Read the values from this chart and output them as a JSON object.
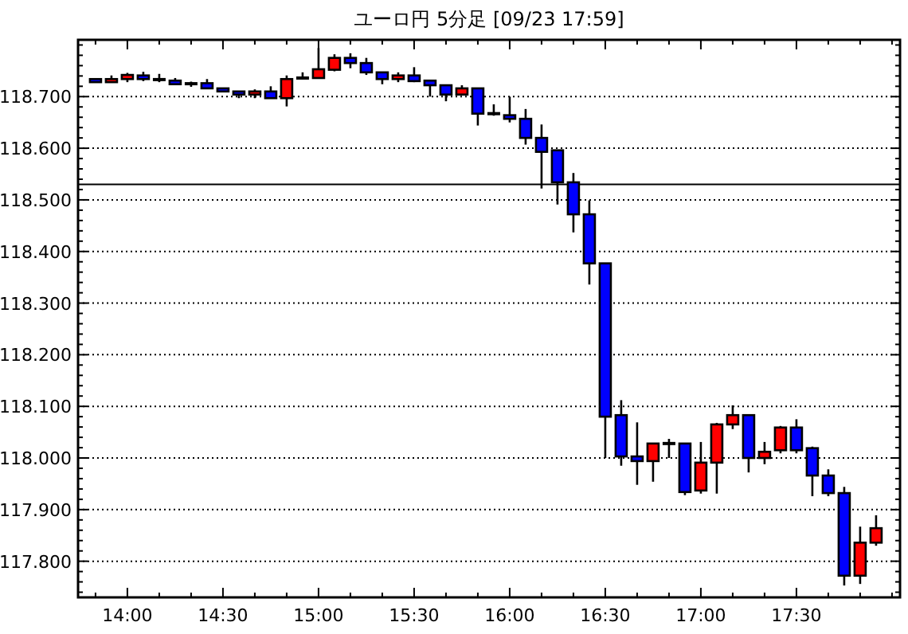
{
  "chart_data": {
    "type": "candlestick",
    "title": "ユーロ円 5分足 [09/23 17:59]",
    "x": [
      13.8333,
      13.9167,
      14.0,
      14.0833,
      14.1667,
      14.25,
      14.3333,
      14.4167,
      14.5,
      14.5833,
      14.6667,
      14.75,
      14.8333,
      14.9167,
      15.0,
      15.0833,
      15.1667,
      15.25,
      15.3333,
      15.4167,
      15.5,
      15.5833,
      15.6667,
      15.75,
      15.8333,
      15.9167,
      16.0,
      16.0833,
      16.1667,
      16.25,
      16.3333,
      16.4167,
      16.5,
      16.5833,
      16.6667,
      16.75,
      16.8333,
      16.9167,
      17.0,
      17.0833,
      17.1667,
      17.25,
      17.3333,
      17.4167,
      17.5,
      17.5833,
      17.6667,
      17.75,
      17.8333,
      17.9167
    ],
    "ohlc": [
      [
        118.734,
        118.735,
        118.728,
        118.728
      ],
      [
        118.728,
        118.741,
        118.728,
        118.734
      ],
      [
        118.734,
        118.746,
        118.728,
        118.742
      ],
      [
        118.741,
        118.748,
        118.73,
        118.734
      ],
      [
        118.733,
        118.744,
        118.728,
        118.733
      ],
      [
        118.731,
        118.736,
        118.724,
        118.724
      ],
      [
        118.725,
        118.729,
        118.719,
        118.725
      ],
      [
        118.726,
        118.734,
        118.716,
        118.716
      ],
      [
        118.716,
        118.717,
        118.709,
        118.71
      ],
      [
        118.71,
        118.711,
        118.697,
        118.704
      ],
      [
        118.704,
        118.714,
        118.697,
        118.71
      ],
      [
        118.71,
        118.72,
        118.697,
        118.697
      ],
      [
        118.697,
        118.741,
        118.681,
        118.734
      ],
      [
        118.736,
        118.747,
        118.734,
        118.736
      ],
      [
        118.736,
        118.794,
        118.736,
        118.753
      ],
      [
        118.752,
        118.782,
        118.749,
        118.775
      ],
      [
        118.775,
        118.784,
        118.755,
        118.765
      ],
      [
        118.765,
        118.775,
        118.742,
        118.747
      ],
      [
        118.747,
        118.748,
        118.724,
        118.734
      ],
      [
        118.734,
        118.747,
        118.728,
        118.741
      ],
      [
        118.741,
        118.757,
        118.728,
        118.73
      ],
      [
        118.731,
        118.732,
        118.7,
        118.722
      ],
      [
        118.722,
        118.723,
        118.691,
        118.704
      ],
      [
        118.704,
        118.722,
        118.704,
        118.716
      ],
      [
        118.716,
        118.717,
        118.644,
        118.667
      ],
      [
        118.667,
        118.685,
        118.663,
        118.667
      ],
      [
        118.664,
        118.7,
        118.65,
        118.657
      ],
      [
        118.657,
        118.676,
        118.607,
        118.62
      ],
      [
        118.62,
        118.646,
        118.522,
        118.593
      ],
      [
        118.596,
        118.597,
        118.491,
        118.534
      ],
      [
        118.534,
        118.552,
        118.437,
        118.472
      ],
      [
        118.472,
        118.499,
        118.336,
        118.377
      ],
      [
        118.377,
        118.377,
        118.0,
        118.08
      ],
      [
        118.083,
        118.112,
        117.985,
        118.003
      ],
      [
        118.003,
        118.069,
        117.948,
        117.994
      ],
      [
        117.994,
        118.029,
        117.954,
        118.028
      ],
      [
        118.028,
        118.037,
        118.0,
        118.028
      ],
      [
        118.028,
        118.029,
        117.928,
        117.934
      ],
      [
        117.937,
        118.031,
        117.931,
        117.991
      ],
      [
        117.991,
        118.068,
        117.931,
        118.065
      ],
      [
        118.065,
        118.102,
        118.056,
        118.083
      ],
      [
        118.083,
        118.084,
        117.972,
        118.0
      ],
      [
        118.0,
        118.031,
        117.988,
        118.012
      ],
      [
        118.015,
        118.062,
        118.009,
        118.059
      ],
      [
        118.059,
        118.075,
        118.009,
        118.015
      ],
      [
        118.019,
        118.022,
        117.926,
        117.966
      ],
      [
        117.966,
        117.978,
        117.926,
        117.932
      ],
      [
        117.932,
        117.944,
        117.753,
        117.772
      ],
      [
        117.772,
        117.867,
        117.756,
        117.836
      ],
      [
        117.836,
        117.889,
        117.83,
        117.864
      ]
    ],
    "colors": [
      "#0000ff",
      "#ff0000",
      "#ff0000",
      "#0000ff",
      "#000000",
      "#0000ff",
      "#000000",
      "#0000ff",
      "#0000ff",
      "#0000ff",
      "#ff0000",
      "#0000ff",
      "#ff0000",
      "#000000",
      "#ff0000",
      "#ff0000",
      "#0000ff",
      "#0000ff",
      "#0000ff",
      "#ff0000",
      "#0000ff",
      "#0000ff",
      "#0000ff",
      "#ff0000",
      "#0000ff",
      "#000000",
      "#0000ff",
      "#0000ff",
      "#0000ff",
      "#0000ff",
      "#0000ff",
      "#0000ff",
      "#0000ff",
      "#0000ff",
      "#0000ff",
      "#ff0000",
      "#000000",
      "#0000ff",
      "#ff0000",
      "#ff0000",
      "#ff0000",
      "#0000ff",
      "#ff0000",
      "#ff0000",
      "#0000ff",
      "#0000ff",
      "#0000ff",
      "#0000ff",
      "#ff0000",
      "#ff0000"
    ],
    "xlim": [
      13.742,
      18.042
    ],
    "xticks": [
      {
        "value": 14,
        "label": "14:00"
      },
      {
        "value": 14.5,
        "label": "14:30"
      },
      {
        "value": 15,
        "label": "15:00"
      },
      {
        "value": 15.5,
        "label": "15:30"
      },
      {
        "value": 16,
        "label": "16:00"
      },
      {
        "value": 16.5,
        "label": "16:30"
      },
      {
        "value": 17,
        "label": "17:00"
      },
      {
        "value": 17.5,
        "label": "17:30"
      }
    ],
    "ylim": [
      117.73,
      118.81
    ],
    "yticks": [
      {
        "value": 117.8,
        "label": "117.800"
      },
      {
        "value": 117.9,
        "label": "117.900"
      },
      {
        "value": 118.0,
        "label": "118.000"
      },
      {
        "value": 118.1,
        "label": "118.100"
      },
      {
        "value": 118.2,
        "label": "118.200"
      },
      {
        "value": 118.3,
        "label": "118.300"
      },
      {
        "value": 118.4,
        "label": "118.400"
      },
      {
        "value": 118.5,
        "label": "118.500"
      },
      {
        "value": 118.6,
        "label": "118.600"
      },
      {
        "value": 118.7,
        "label": "118.700"
      }
    ],
    "grid": "y",
    "ref_lines": [
      {
        "axis": "y",
        "value": 118.53,
        "color": "#000000",
        "line_style": "solid"
      }
    ]
  }
}
